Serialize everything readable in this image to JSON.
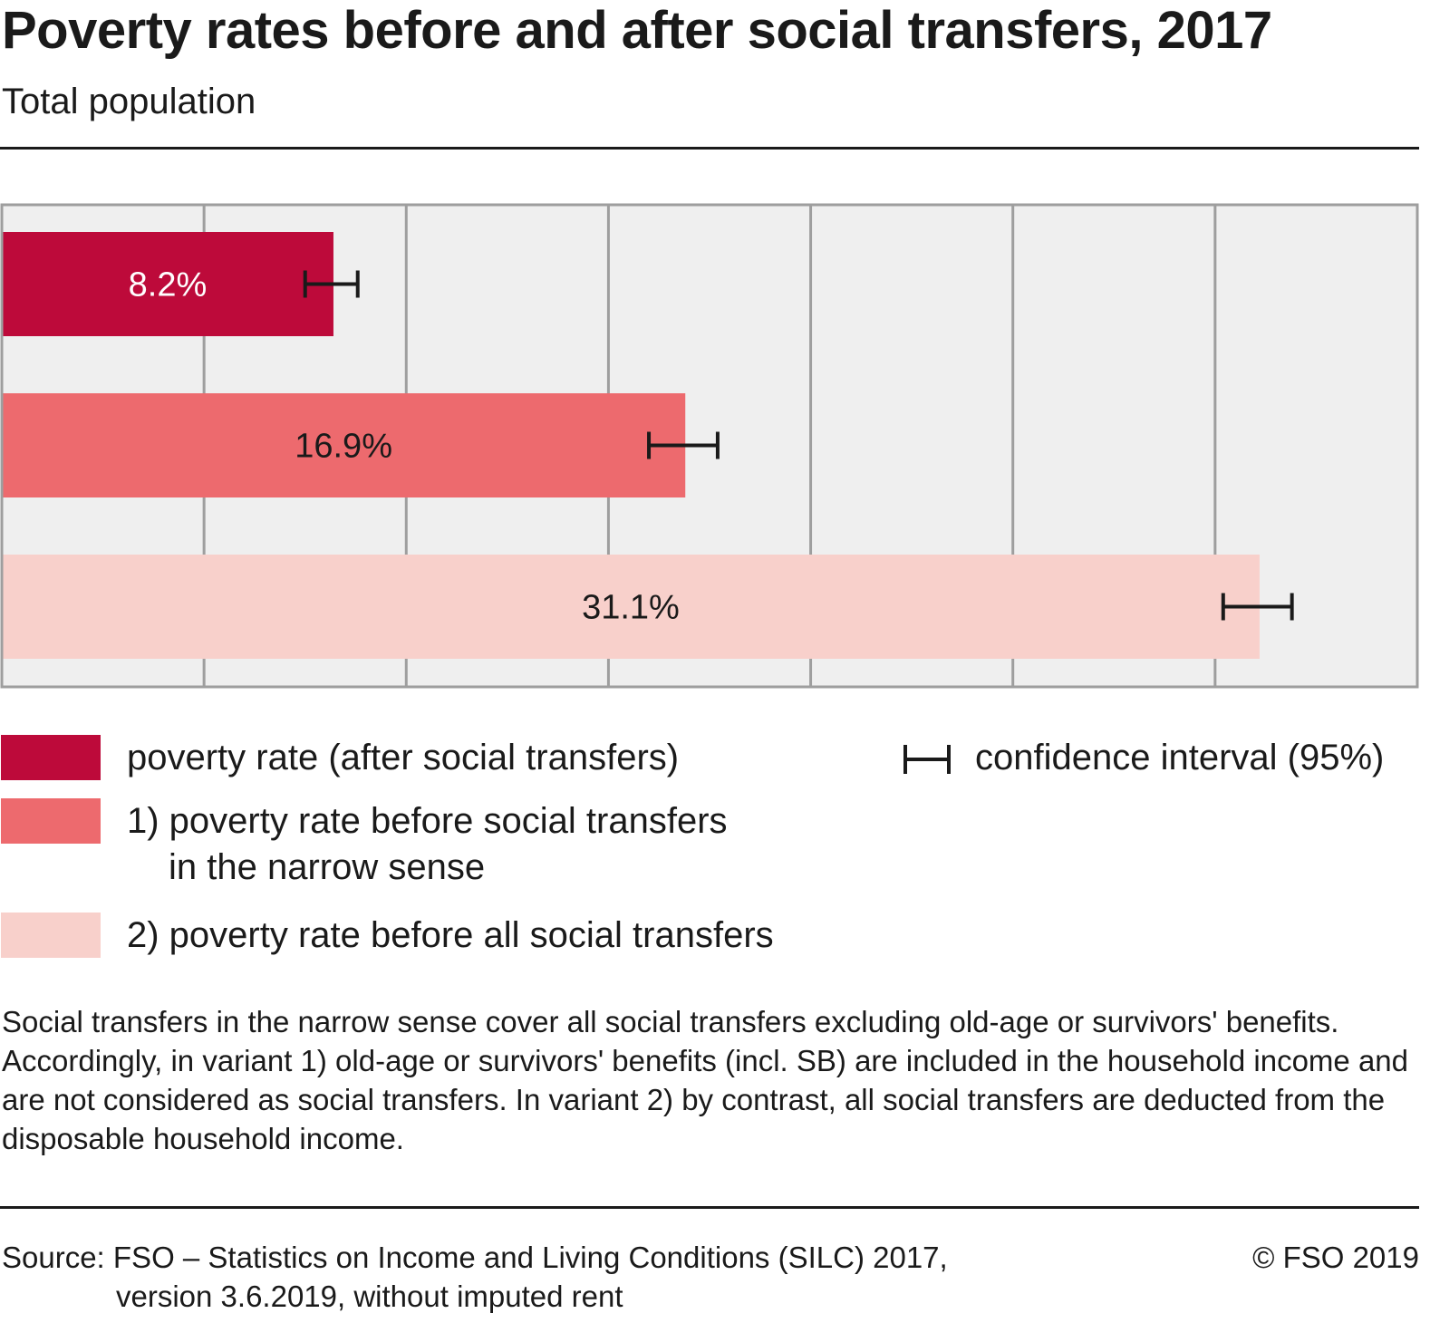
{
  "header": {
    "title": "Poverty rates before and after social transfers, 2017",
    "subtitle": "Total population"
  },
  "chart_data": {
    "type": "bar",
    "orientation": "horizontal",
    "categories": [
      "poverty rate (after social transfers)",
      "1) poverty rate before social transfers in the narrow sense",
      "2) poverty rate before all social transfers"
    ],
    "values": [
      8.2,
      16.9,
      31.1
    ],
    "value_labels": [
      "8.2%",
      "16.9%",
      "31.1%"
    ],
    "confidence_intervals": [
      [
        7.5,
        8.8
      ],
      [
        16.0,
        17.7
      ],
      [
        30.2,
        31.9
      ]
    ],
    "colors": [
      "#bd0a3a",
      "#ed6a6e",
      "#f8d0cb"
    ],
    "label_colors": [
      "#ffffff",
      "#1a1a1a",
      "#1a1a1a"
    ],
    "xlim": [
      0,
      35
    ],
    "grid": true,
    "grid_step": 5,
    "plot_background": "#efefef",
    "grid_color": "#9e9e9e",
    "legend_placement": "bottom"
  },
  "legend": {
    "items": [
      {
        "line1": "poverty rate (after social transfers)",
        "line2": ""
      },
      {
        "line1": "1) poverty rate before social transfers",
        "line2": "in the narrow sense"
      },
      {
        "line1": "2) poverty rate before all social transfers",
        "line2": ""
      }
    ],
    "ci_label": "confidence interval (95%)"
  },
  "note": "Social transfers in the narrow sense cover all social transfers excluding old-age or survivors' benefits. Accordingly, in variant 1) old-age or survivors' benefits (incl. SB) are included in the household income and are not considered as social transfers. In variant 2) by contrast, all social transfers are deducted from the disposable household income.",
  "footer": {
    "source_line1": "Source: FSO – Statistics on Income and Living Conditions (SILC) 2017,",
    "source_line2": "version 3.6.2019, without imputed rent",
    "copyright": "© FSO 2019"
  }
}
